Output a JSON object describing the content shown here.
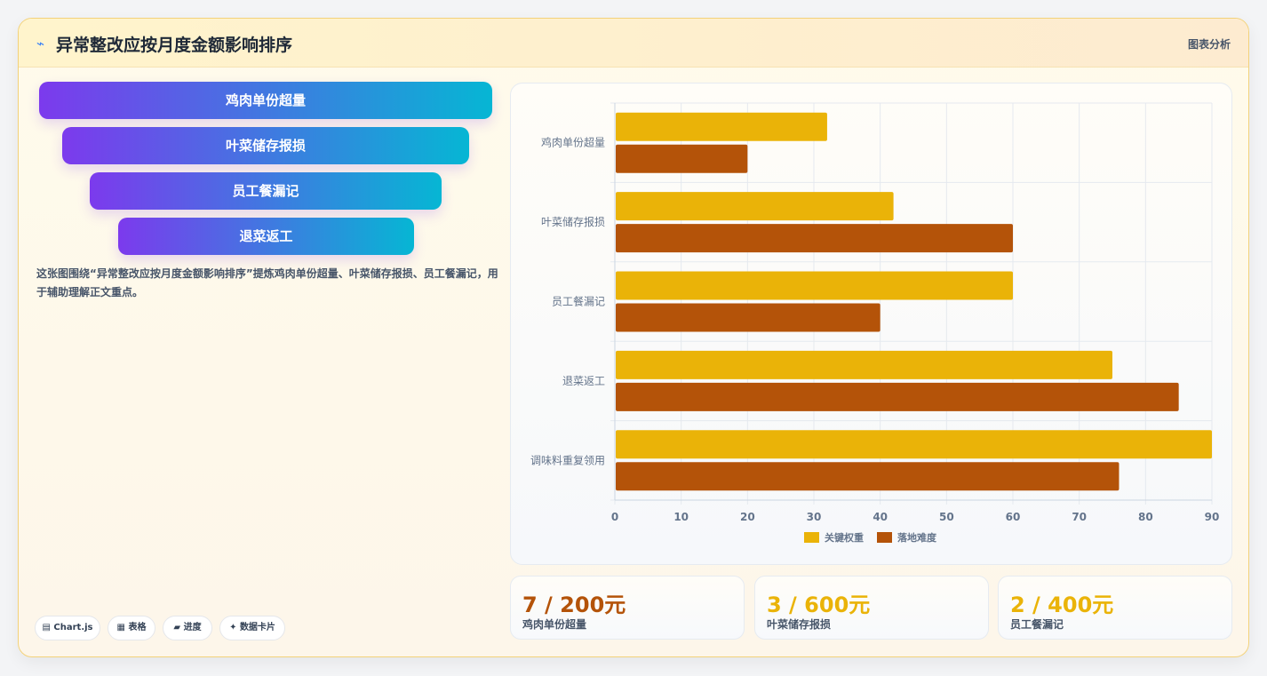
{
  "header": {
    "icon": "trend-icon",
    "title": "异常整改应按月度金额影响排序",
    "badge": "图表分析"
  },
  "funnel": {
    "items": [
      "鸡肉单份超量",
      "叶菜储存报损",
      "员工餐漏记",
      "退菜返工"
    ],
    "gradient_start": "#7c3aed",
    "gradient_end": "#06b6d4"
  },
  "description": "这张图围绕“异常整改应按月度金额影响排序”提炼鸡肉单份超量、叶菜储存报损、员工餐漏记，用于辅助理解正文重点。",
  "chips": [
    {
      "icon": "chart-icon",
      "label": "Chart.js"
    },
    {
      "icon": "table-icon",
      "label": "表格"
    },
    {
      "icon": "progress-icon",
      "label": "进度"
    },
    {
      "icon": "sparkle-icon",
      "label": "数据卡片"
    }
  ],
  "chart_data": {
    "type": "bar",
    "orientation": "horizontal",
    "categories": [
      "鸡肉单份超量",
      "叶菜储存报损",
      "员工餐漏记",
      "退菜返工",
      "调味料重复领用"
    ],
    "series": [
      {
        "name": "关键权重",
        "color": "#eab308",
        "values": [
          32,
          42,
          60,
          75,
          90
        ]
      },
      {
        "name": "落地难度",
        "color": "#b45309",
        "values": [
          20,
          60,
          40,
          85,
          76
        ]
      }
    ],
    "xlim": [
      0,
      90
    ],
    "xticks": [
      0,
      10,
      20,
      30,
      40,
      50,
      60,
      70,
      80,
      90
    ],
    "grid": true,
    "legend": "bottom"
  },
  "stats": [
    {
      "value": "7 / 200元",
      "label": "鸡肉单份超量",
      "color": "#b45309"
    },
    {
      "value": "3 / 600元",
      "label": "叶菜储存报损",
      "color": "#eab308"
    },
    {
      "value": "2 / 400元",
      "label": "员工餐漏记",
      "color": "#eab308"
    }
  ]
}
